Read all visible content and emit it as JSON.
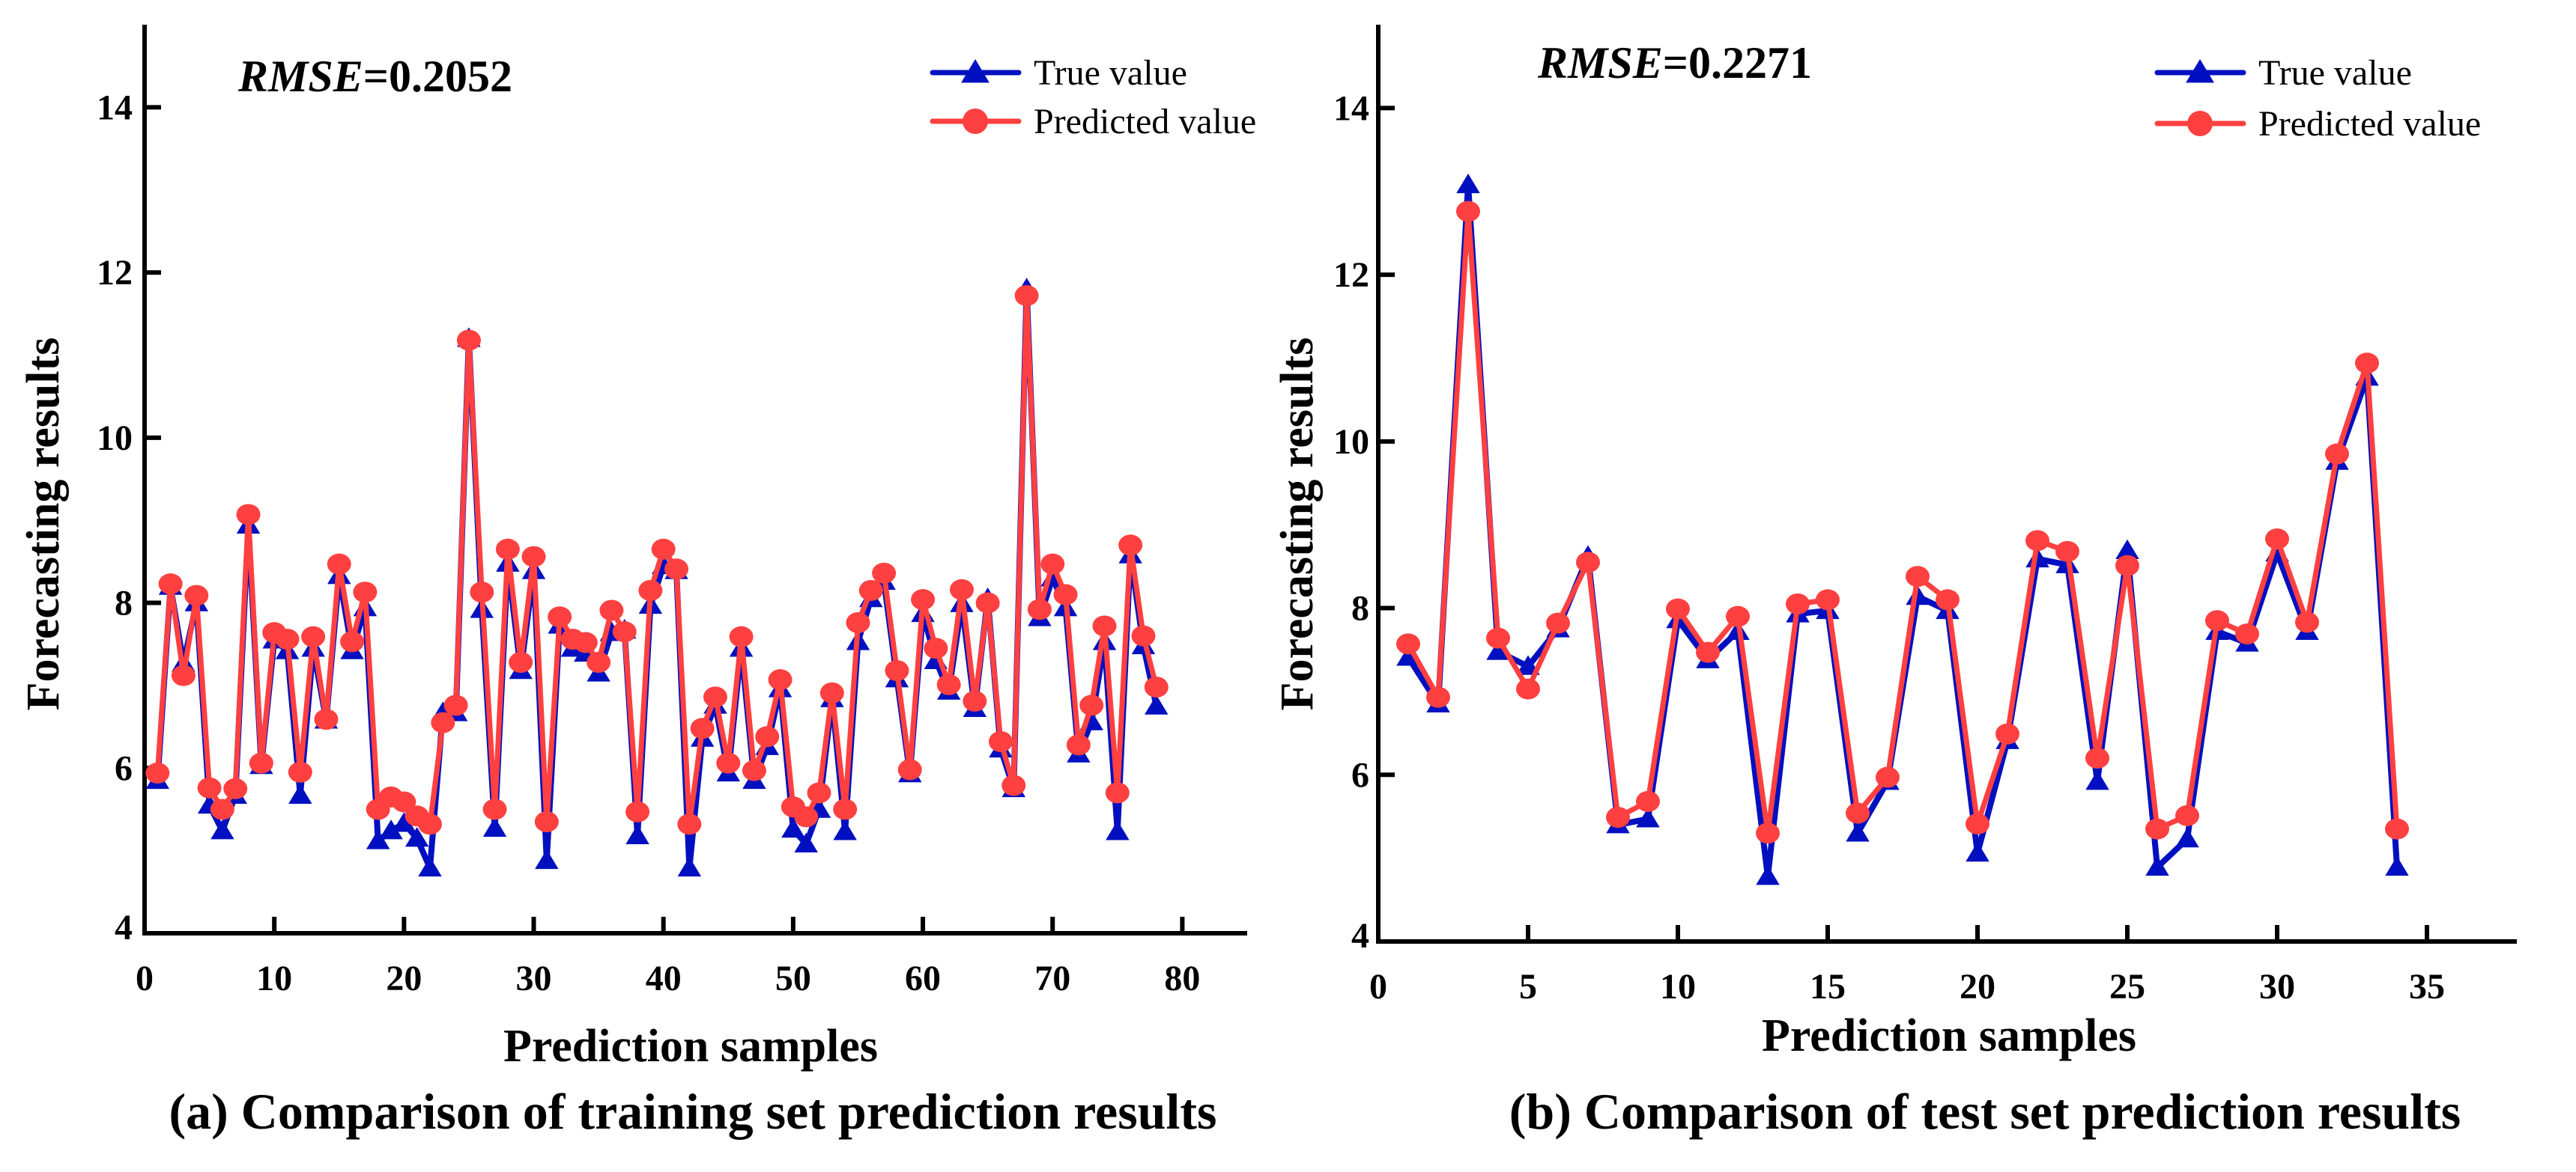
{
  "colors": {
    "true": "#0010C0",
    "predicted": "#FF4040",
    "axis": "#000000"
  },
  "chart_data": [
    {
      "type": "line",
      "caption": "(a) Comparison of training set prediction results",
      "rmse_label": "RMSE",
      "rmse_value": "=0.2052",
      "xlabel": "Prediction samples",
      "ylabel": "Forecasting results",
      "xlim": [
        0,
        85
      ],
      "ylim": [
        4,
        15
      ],
      "xticks": [
        0,
        10,
        20,
        30,
        40,
        50,
        60,
        70,
        80
      ],
      "yticks": [
        4,
        6,
        8,
        10,
        12,
        14
      ],
      "legend_position": "top-right",
      "x": [
        1,
        2,
        3,
        4,
        5,
        6,
        7,
        8,
        9,
        10,
        11,
        12,
        13,
        14,
        15,
        16,
        17,
        18,
        19,
        20,
        21,
        22,
        23,
        24,
        25,
        26,
        27,
        28,
        29,
        30,
        31,
        32,
        33,
        34,
        35,
        36,
        37,
        38,
        39,
        40,
        41,
        42,
        43,
        44,
        45,
        46,
        47,
        48,
        49,
        50,
        51,
        52,
        53,
        54,
        55,
        56,
        57,
        58,
        59,
        60,
        61,
        62,
        63,
        64,
        65,
        66,
        67,
        68,
        69,
        70,
        71,
        72,
        73,
        74,
        75,
        76,
        77,
        78
      ],
      "series": [
        {
          "name": "True value",
          "marker": "triangle",
          "values": [
            5.85,
            8.2,
            7.27,
            8.0,
            5.55,
            5.24,
            5.67,
            8.94,
            6.03,
            7.55,
            7.42,
            5.67,
            7.45,
            6.58,
            8.33,
            7.42,
            7.94,
            5.12,
            5.24,
            5.33,
            5.15,
            4.79,
            6.67,
            6.67,
            11.2,
            7.92,
            5.27,
            8.48,
            7.18,
            8.39,
            4.88,
            7.73,
            7.45,
            7.39,
            7.15,
            7.64,
            7.67,
            5.18,
            7.97,
            8.45,
            8.39,
            4.79,
            6.36,
            6.76,
            5.94,
            7.45,
            5.85,
            6.26,
            6.96,
            5.26,
            5.08,
            5.5,
            6.84,
            5.23,
            7.53,
            8.05,
            8.26,
            7.08,
            5.93,
            7.87,
            7.3,
            6.93,
            7.99,
            6.72,
            8.05,
            6.23,
            5.75,
            11.8,
            7.82,
            8.3,
            7.94,
            6.17,
            6.56,
            7.53,
            5.23,
            8.58,
            7.48,
            6.75
          ]
        },
        {
          "name": "Predicted value",
          "marker": "circle",
          "values": [
            5.94,
            8.23,
            7.12,
            8.09,
            5.76,
            5.5,
            5.75,
            9.07,
            6.06,
            7.64,
            7.56,
            5.95,
            7.59,
            6.59,
            8.47,
            7.53,
            8.13,
            5.5,
            5.65,
            5.59,
            5.42,
            5.32,
            6.55,
            6.76,
            11.18,
            8.13,
            5.5,
            8.65,
            7.28,
            8.56,
            5.35,
            7.83,
            7.56,
            7.52,
            7.28,
            7.91,
            7.65,
            5.47,
            8.15,
            8.65,
            8.41,
            5.32,
            6.48,
            6.86,
            6.06,
            7.59,
            5.97,
            6.38,
            7.07,
            5.53,
            5.41,
            5.7,
            6.91,
            5.5,
            7.76,
            8.15,
            8.36,
            7.18,
            5.98,
            8.04,
            7.45,
            7.01,
            8.16,
            6.81,
            8.0,
            6.32,
            5.79,
            11.72,
            7.92,
            8.47,
            8.1,
            6.28,
            6.76,
            7.72,
            5.7,
            8.7,
            7.6,
            6.98
          ]
        }
      ]
    },
    {
      "type": "line",
      "caption": "(b) Comparison of test set prediction results",
      "rmse_label": "RMSE",
      "rmse_value": "=0.2271",
      "xlabel": "Prediction samples",
      "ylabel": "Forecasting results",
      "xlim": [
        0,
        38
      ],
      "ylim": [
        4,
        15
      ],
      "xticks": [
        0,
        5,
        10,
        15,
        20,
        25,
        30,
        35
      ],
      "yticks": [
        4,
        6,
        8,
        10,
        12,
        14
      ],
      "legend_position": "top-right",
      "x": [
        1,
        2,
        3,
        4,
        5,
        6,
        7,
        8,
        9,
        10,
        11,
        12,
        13,
        14,
        15,
        16,
        17,
        18,
        19,
        20,
        21,
        22,
        23,
        24,
        25,
        26,
        27,
        28,
        29,
        30,
        31,
        32,
        33,
        34
      ],
      "series": [
        {
          "name": "True value",
          "marker": "triangle",
          "values": [
            7.41,
            6.85,
            13.08,
            7.48,
            7.3,
            7.75,
            8.62,
            5.4,
            5.47,
            7.86,
            7.38,
            7.72,
            4.78,
            7.93,
            7.97,
            5.3,
            5.92,
            8.14,
            7.97,
            5.06,
            6.41,
            8.59,
            8.52,
            5.92,
            8.69,
            4.89,
            5.23,
            7.72,
            7.58,
            8.66,
            7.72,
            9.76,
            10.77,
            4.89
          ]
        },
        {
          "name": "Predicted value",
          "marker": "circle",
          "values": [
            7.57,
            6.93,
            12.76,
            7.64,
            7.03,
            7.82,
            8.55,
            5.49,
            5.68,
            7.99,
            7.47,
            7.9,
            5.3,
            8.05,
            8.1,
            5.54,
            5.97,
            8.38,
            8.1,
            5.41,
            6.49,
            8.81,
            8.68,
            6.2,
            8.51,
            5.35,
            5.51,
            7.85,
            7.69,
            8.83,
            7.83,
            9.85,
            10.94,
            5.35
          ]
        }
      ]
    }
  ]
}
